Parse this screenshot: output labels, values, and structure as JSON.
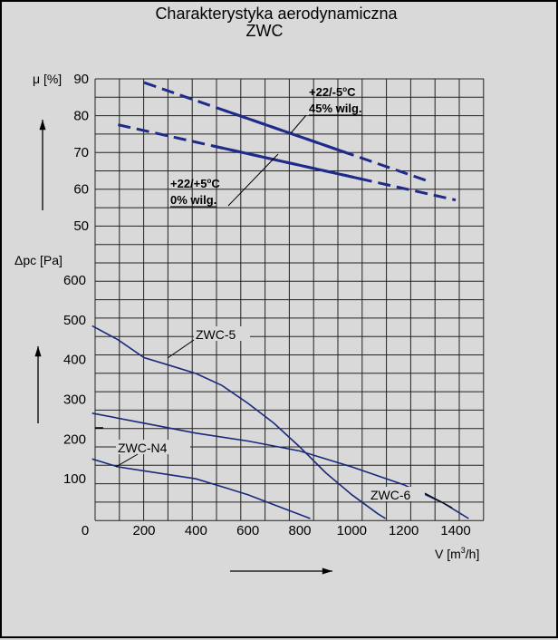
{
  "title_line1": "Charakterystyka aerodynamiczna",
  "title_line2": "ZWC",
  "chart_data": [
    {
      "type": "line",
      "ylabel": "μ [%]",
      "ylim": [
        50,
        90
      ],
      "yticks": [
        "90",
        "80",
        "70",
        "60",
        "50"
      ],
      "xlim": [
        0,
        1500
      ],
      "series": [
        {
          "name": "+22/-5°C 45% wilg.",
          "x": [
            200,
            1300
          ],
          "y": [
            89,
            62
          ]
        },
        {
          "name": "+22/+5°C 0% wilg.",
          "x": [
            100,
            1400
          ],
          "y": [
            77.5,
            57
          ]
        }
      ],
      "annotations": [
        {
          "line1": "+22/-5",
          "sup": "o",
          "line1b": "C",
          "line2": "45% wilg."
        },
        {
          "line1": "+22/+5",
          "sup": "o",
          "line1b": "C",
          "line2": "0% wilg."
        }
      ]
    },
    {
      "type": "line",
      "xlabel_main": "V [m",
      "xlabel_sup": "3",
      "xlabel_end": "/h]",
      "ylabel": "Δpc [Pa]",
      "xlim": [
        0,
        1500
      ],
      "ylim": [
        0,
        600
      ],
      "xticks": [
        "0",
        "200",
        "400",
        "600",
        "800",
        "1000",
        "1200",
        "1400"
      ],
      "yticks": [
        "600",
        "500",
        "400",
        "300",
        "200",
        "100"
      ],
      "series": [
        {
          "name": "ZWC-5",
          "x": [
            0,
            100,
            200,
            300,
            400,
            500,
            600,
            700,
            800,
            900,
            1000,
            1100,
            1130
          ],
          "y": [
            485,
            450,
            405,
            385,
            365,
            335,
            290,
            240,
            180,
            115,
            60,
            12,
            0
          ]
        },
        {
          "name": "ZWC-6",
          "x": [
            0,
            200,
            400,
            600,
            800,
            1000,
            1200,
            1350,
            1450
          ],
          "y": [
            265,
            240,
            215,
            195,
            170,
            130,
            85,
            40,
            0
          ]
        },
        {
          "name": "ZWC-N4",
          "x": [
            0,
            100,
            200,
            300,
            400,
            500,
            600,
            700,
            800,
            840
          ],
          "y": [
            150,
            130,
            120,
            110,
            100,
            80,
            60,
            35,
            10,
            0
          ]
        }
      ]
    }
  ]
}
